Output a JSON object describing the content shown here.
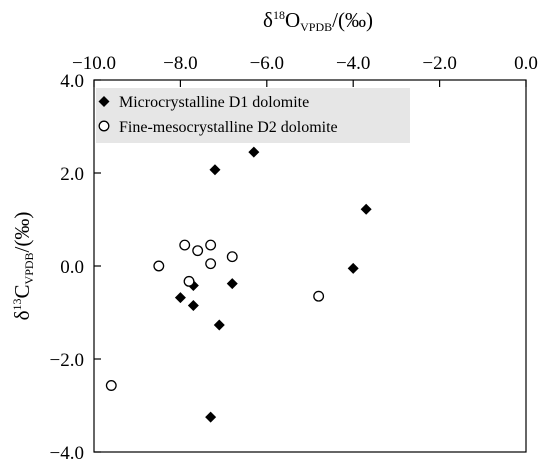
{
  "chart_data": {
    "type": "scatter",
    "x_axis": {
      "position": "top",
      "title_parts": [
        "δ",
        "18",
        "O",
        "VPDB",
        "/(‰)"
      ],
      "lim": [
        -10.0,
        0.0
      ],
      "ticks": [
        -10.0,
        -8.0,
        -6.0,
        -4.0,
        -2.0,
        0.0
      ],
      "tick_labels": [
        "−10.0",
        "−8.0",
        "−6.0",
        "−4.0",
        "−2.0",
        "0.0"
      ]
    },
    "y_axis": {
      "position": "left",
      "title_parts": [
        "δ",
        "13",
        "C",
        "VPDB",
        "/(‰)"
      ],
      "lim": [
        -4.0,
        4.0
      ],
      "ticks": [
        4.0,
        2.0,
        0.0,
        -2.0,
        -4.0
      ],
      "tick_labels": [
        "4.0",
        "2.0",
        "0.0",
        "−2.0",
        "−4.0"
      ]
    },
    "grid": false,
    "legend": {
      "placement": "top-left",
      "background": "#e6e6e6"
    },
    "series": [
      {
        "name": "Microcrystalline D1 dolomite",
        "marker": "filled-diamond",
        "color": "#000000",
        "points": [
          {
            "x": -6.3,
            "y": 2.45
          },
          {
            "x": -7.2,
            "y": 2.07
          },
          {
            "x": -3.7,
            "y": 1.22
          },
          {
            "x": -4.0,
            "y": -0.05
          },
          {
            "x": -6.8,
            "y": -0.38
          },
          {
            "x": -7.7,
            "y": -0.42
          },
          {
            "x": -8.0,
            "y": -0.68
          },
          {
            "x": -7.7,
            "y": -0.85
          },
          {
            "x": -7.1,
            "y": -1.27
          },
          {
            "x": -7.3,
            "y": -3.25
          }
        ]
      },
      {
        "name": "Fine-mesocrystalline D2 dolomite",
        "marker": "open-circle",
        "color": "#000000",
        "points": [
          {
            "x": -7.9,
            "y": 0.45
          },
          {
            "x": -7.3,
            "y": 0.45
          },
          {
            "x": -7.6,
            "y": 0.33
          },
          {
            "x": -6.8,
            "y": 0.2
          },
          {
            "x": -8.5,
            "y": 0.0
          },
          {
            "x": -7.3,
            "y": 0.05
          },
          {
            "x": -7.8,
            "y": -0.33
          },
          {
            "x": -4.8,
            "y": -0.65
          },
          {
            "x": -9.6,
            "y": -2.57
          }
        ]
      }
    ]
  }
}
